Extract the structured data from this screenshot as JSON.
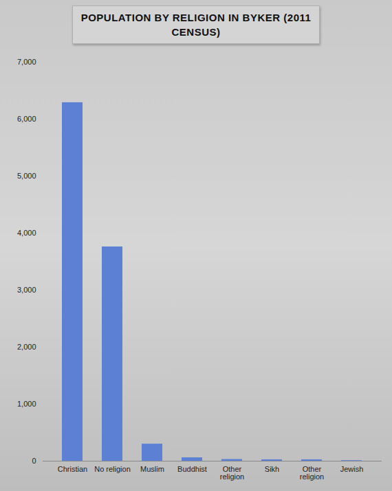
{
  "chart_data": {
    "type": "bar",
    "title": "POPULATION BY RELIGION IN BYKER (2011 CENSUS)",
    "categories": [
      "Christian",
      "No religion",
      "Muslim",
      "Buddhist",
      "Other religion",
      "Sikh",
      "Other religion",
      "Jewish"
    ],
    "values": [
      6290,
      3760,
      300,
      60,
      30,
      25,
      25,
      10
    ],
    "color": "#5b80d4",
    "ylim": [
      0,
      7000
    ],
    "yticks": [
      0,
      {
        "value": 1000,
        "label": "1,000"
      },
      {
        "value": 2000,
        "label": "2,000"
      },
      {
        "value": 3000,
        "label": "3,000"
      },
      {
        "value": 4000,
        "label": "4,000"
      },
      {
        "value": 5000,
        "label": "5,000"
      },
      {
        "value": 6000,
        "label": "6,000"
      },
      {
        "value": 7000,
        "label": "7,000"
      }
    ],
    "grid": false
  }
}
